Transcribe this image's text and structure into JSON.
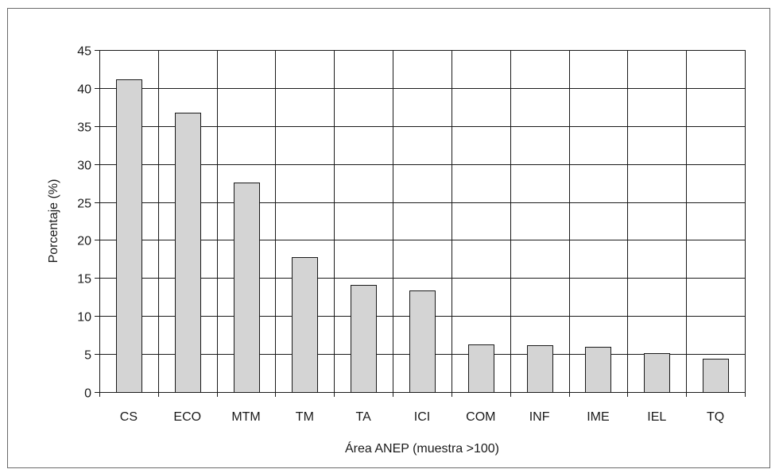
{
  "chart_data": {
    "type": "bar",
    "title": "",
    "xlabel": "Área ANEP (muestra >100)",
    "ylabel": "Porcentaje (%)",
    "categories": [
      "CS",
      "ECO",
      "MTM",
      "TM",
      "TA",
      "ICI",
      "COM",
      "INF",
      "IME",
      "IEL",
      "TQ"
    ],
    "values": [
      41.1,
      36.8,
      27.6,
      17.7,
      14.1,
      13.4,
      6.3,
      6.2,
      5.9,
      5.1,
      4.4
    ],
    "ylim": [
      0,
      45
    ],
    "yticks": [
      0,
      5,
      10,
      15,
      20,
      25,
      30,
      35,
      40,
      45
    ],
    "grid": "horizontal and vertical",
    "legend": "none",
    "colors": {
      "bar_fill": "#d4d4d4",
      "bar_stroke": "#1a1a1a",
      "grid": "#1a1a1a",
      "axis": "#1a1a1a"
    }
  }
}
